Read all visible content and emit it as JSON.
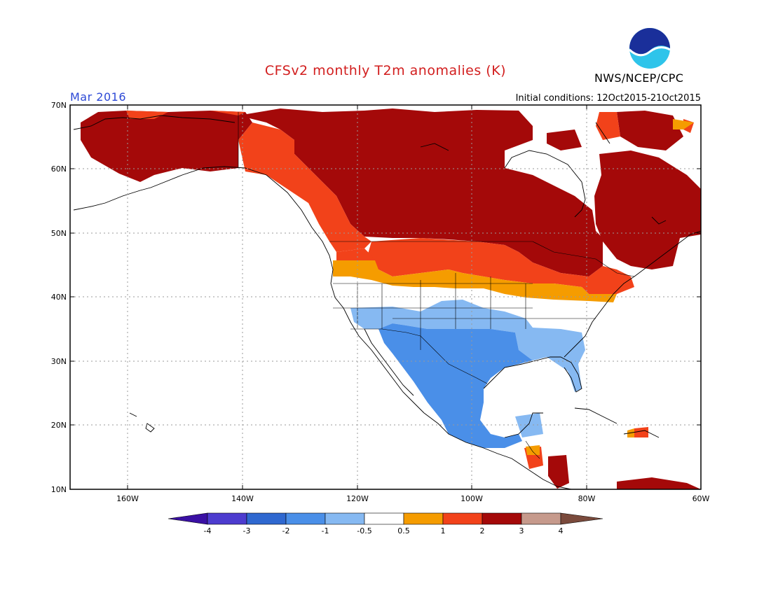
{
  "header": {
    "title": "CFSv2 monthly T2m anomalies (K)",
    "month": "Mar 2016",
    "initial_conditions": "Initial conditions: 12Oct2015-21Oct2015",
    "agency": "NWS/NCEP/CPC",
    "logo_text": "NOAA"
  },
  "map": {
    "lat_labels": [
      "70N",
      "60N",
      "50N",
      "40N",
      "30N",
      "20N",
      "10N"
    ],
    "lon_labels": [
      "160W",
      "140W",
      "120W",
      "100W",
      "80W",
      "60W"
    ],
    "lat_range": [
      10,
      70
    ],
    "lon_range": [
      -170,
      -60
    ]
  },
  "colorbar": {
    "tick_labels": [
      "-4",
      "-3",
      "-2",
      "-1",
      "-0.5",
      "0.5",
      "1",
      "2",
      "3",
      "4"
    ],
    "colors": [
      "#3a10a4",
      "#4d3ccf",
      "#2f68d0",
      "#4a8fe8",
      "#86b9f2",
      "#ffffff",
      "#f59c00",
      "#f2421a",
      "#a40909",
      "#c69a8c",
      "#7a4a3c"
    ]
  }
}
